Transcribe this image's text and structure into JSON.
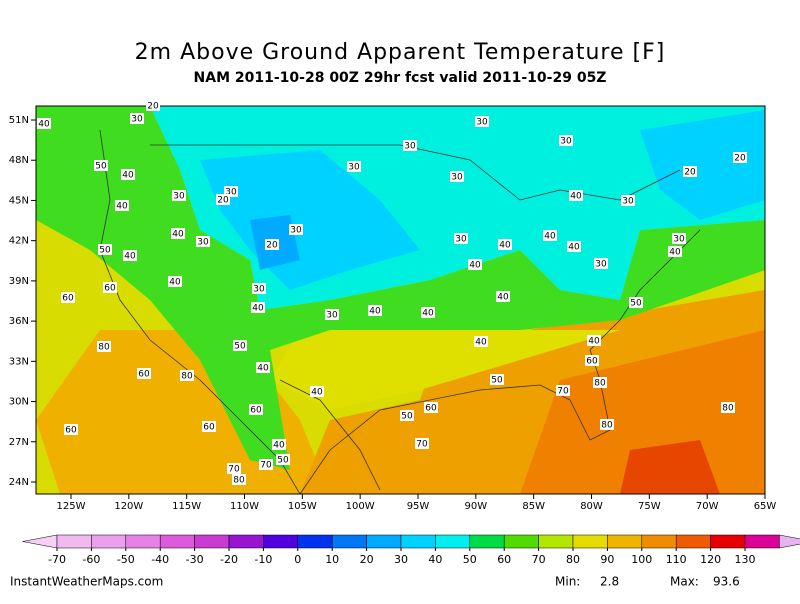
{
  "header": {
    "title": "2m Above Ground Apparent Temperature [F]",
    "subtitle": "NAM 2011-10-28 00Z 29hr fcst valid 2011-10-29 05Z"
  },
  "map": {
    "lat_ticks": [
      {
        "value": 51,
        "label": "51N"
      },
      {
        "value": 48,
        "label": "48N"
      },
      {
        "value": 45,
        "label": "45N"
      },
      {
        "value": 42,
        "label": "42N"
      },
      {
        "value": 39,
        "label": "39N"
      },
      {
        "value": 36,
        "label": "36N"
      },
      {
        "value": 33,
        "label": "33N"
      },
      {
        "value": 30,
        "label": "30N"
      },
      {
        "value": 27,
        "label": "27N"
      },
      {
        "value": 24,
        "label": "24N"
      }
    ],
    "lon_ticks": [
      {
        "value": -125,
        "label": "125W"
      },
      {
        "value": -120,
        "label": "120W"
      },
      {
        "value": -115,
        "label": "115W"
      },
      {
        "value": -110,
        "label": "110W"
      },
      {
        "value": -105,
        "label": "105W"
      },
      {
        "value": -100,
        "label": "100W"
      },
      {
        "value": -95,
        "label": "95W"
      },
      {
        "value": -90,
        "label": "90W"
      },
      {
        "value": -85,
        "label": "85W"
      },
      {
        "value": -80,
        "label": "80W"
      },
      {
        "value": -75,
        "label": "75W"
      },
      {
        "value": -70,
        "label": "70W"
      },
      {
        "value": -65,
        "label": "65W"
      }
    ],
    "contour_labels": [
      40,
      20,
      30,
      50,
      40,
      40,
      30,
      30,
      20,
      40,
      30,
      50,
      40,
      60,
      40,
      60,
      20,
      30,
      30,
      40,
      30,
      40,
      40,
      50,
      80,
      60,
      80,
      40,
      40,
      60,
      60,
      60,
      40,
      50,
      70,
      70,
      80,
      50,
      60,
      70,
      30,
      30,
      30,
      30,
      30,
      40,
      30,
      20,
      20,
      30,
      40,
      30,
      40,
      40,
      40,
      30,
      40,
      40,
      50,
      40,
      40,
      60,
      50,
      70,
      80,
      80,
      80
    ]
  },
  "colorbar": {
    "ticks": [
      -70,
      -60,
      -50,
      -40,
      -30,
      -20,
      -10,
      0,
      10,
      20,
      30,
      40,
      50,
      60,
      70,
      80,
      90,
      100,
      110,
      120,
      130
    ],
    "colors": [
      "#f5d2f5",
      "#f0b9f0",
      "#eba0eb",
      "#e682e6",
      "#dc5adc",
      "#c83cd2",
      "#9614d2",
      "#5000dc",
      "#0032f0",
      "#0078f5",
      "#00aaff",
      "#00d2ff",
      "#00f0f0",
      "#00dc46",
      "#50dc00",
      "#b4e600",
      "#e6dc00",
      "#f0b400",
      "#f08c00",
      "#f05a00",
      "#e60000",
      "#dc0096",
      "#e6b4f0"
    ]
  },
  "footer": {
    "site": "InstantWeatherMaps.com",
    "min_label": "Min:",
    "min": 2.8,
    "max_label": "Max:",
    "max": 93.6
  }
}
